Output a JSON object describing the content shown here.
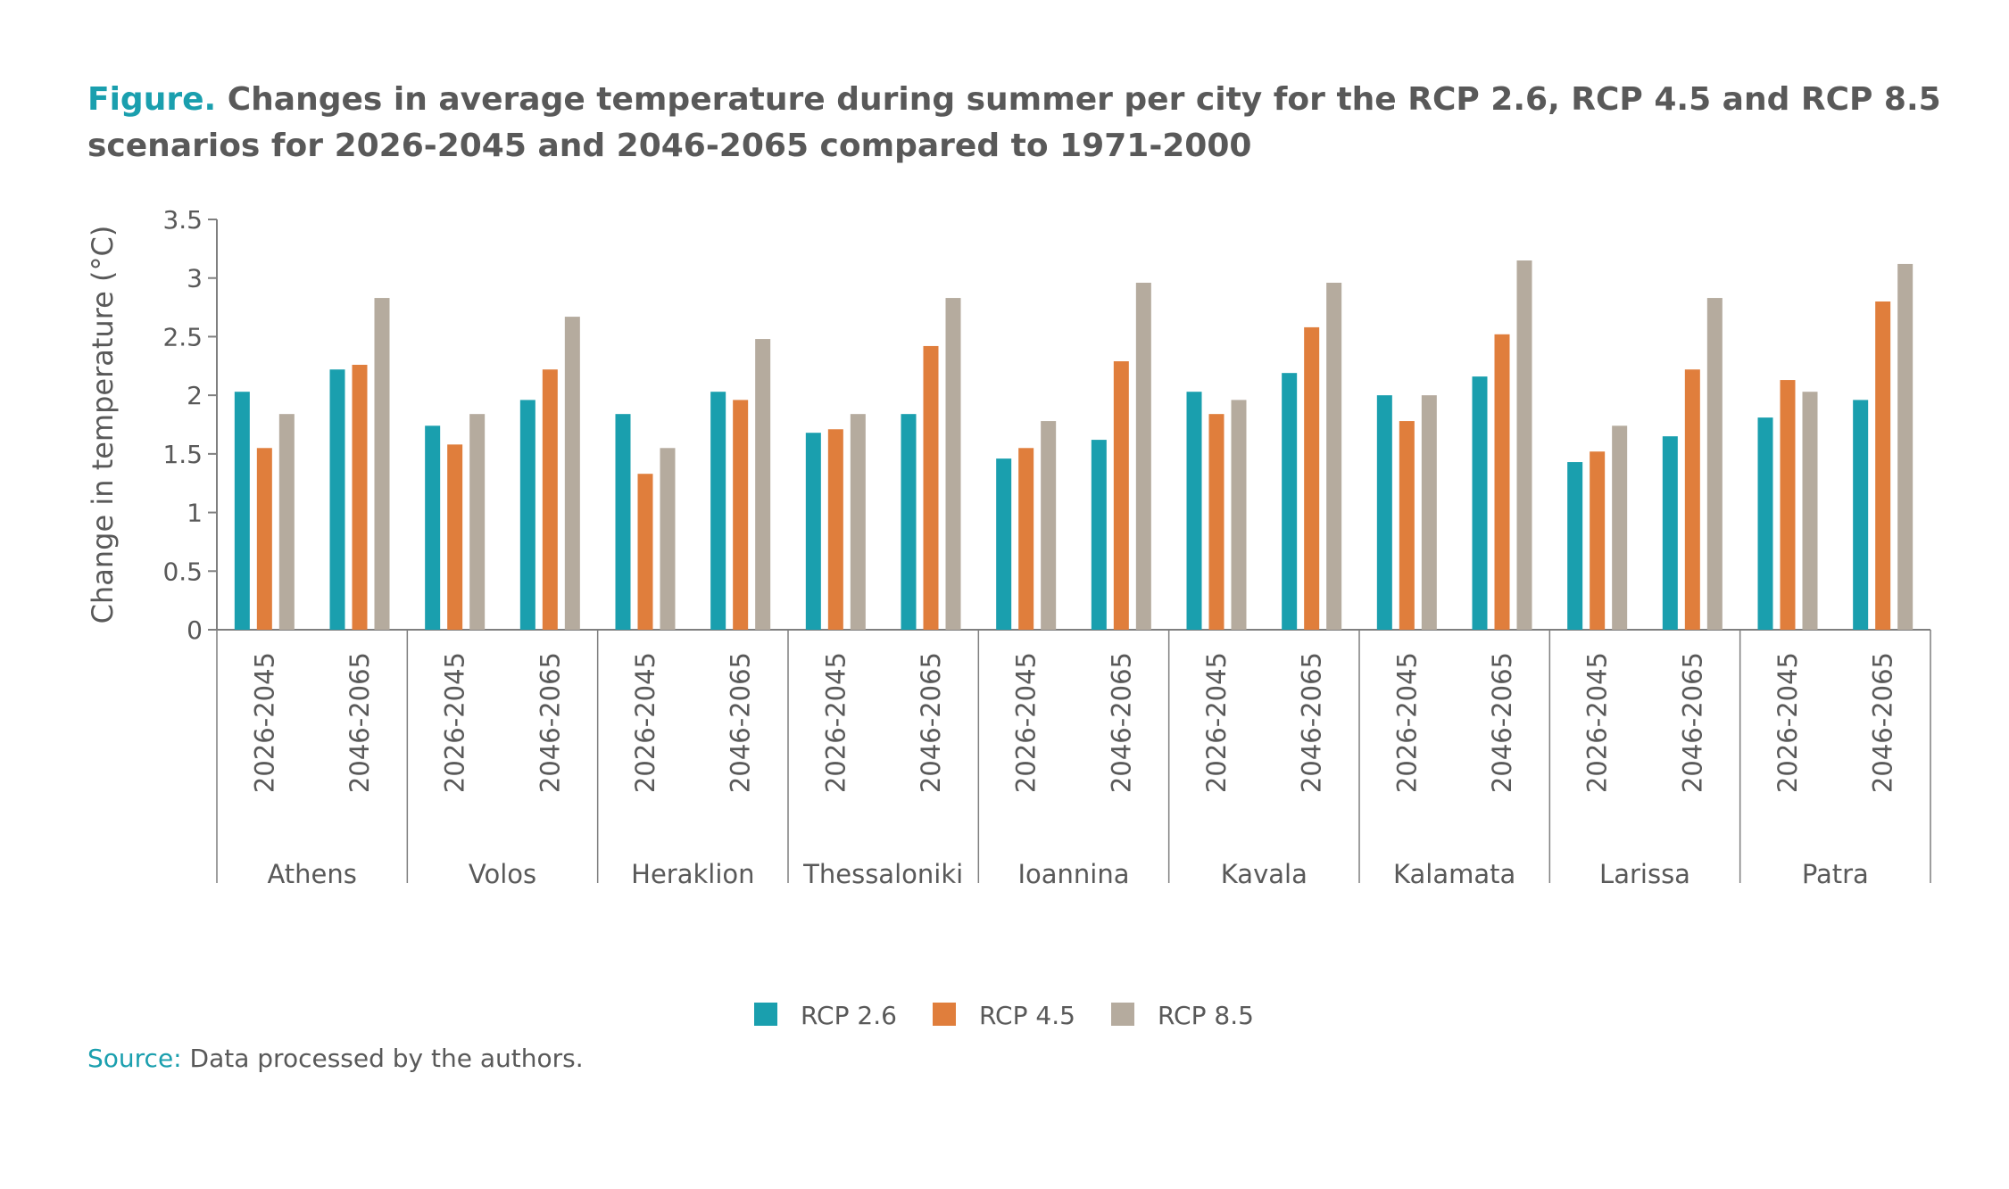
{
  "title_prefix": "Figure.",
  "title_text": "Changes in average temperature during summer per city for the RCP 2.6, RCP 4.5 and RCP 8.5 scenarios for 2026-2045 and 2046-2065 compared to 1971-2000",
  "source_label": "Source:",
  "source_text": "Data processed by the authors.",
  "chart_data": {
    "type": "bar",
    "ylabel": "Change in temperature (°C)",
    "ylim": [
      0,
      3.5
    ],
    "yticks": [
      "0",
      "0.5",
      "1",
      "1.5",
      "2",
      "2.5",
      "3",
      "3.5"
    ],
    "periods": [
      "2026-2045",
      "2046-2065"
    ],
    "cities": [
      "Athens",
      "Volos",
      "Heraklion",
      "Thessaloniki",
      "Ioannina",
      "Kavala",
      "Kalamata",
      "Larissa",
      "Patra"
    ],
    "categories": [
      "Athens 2026-2045",
      "Athens 2046-2065",
      "Volos 2026-2045",
      "Volos 2046-2065",
      "Heraklion 2026-2045",
      "Heraklion 2046-2065",
      "Thessaloniki 2026-2045",
      "Thessaloniki 2046-2065",
      "Ioannina 2026-2045",
      "Ioannina 2046-2065",
      "Kavala 2026-2045",
      "Kavala 2046-2065",
      "Kalamata 2026-2045",
      "Kalamata 2046-2065",
      "Larissa 2026-2045",
      "Larissa 2046-2065",
      "Patra 2026-2045",
      "Patra 2046-2065"
    ],
    "series": [
      {
        "name": "RCP 2.6",
        "color": "#1a9fae",
        "values": [
          2.03,
          2.22,
          1.74,
          1.96,
          1.84,
          2.03,
          1.68,
          1.84,
          1.46,
          1.62,
          2.03,
          2.19,
          2.0,
          2.16,
          1.43,
          1.65,
          1.81,
          1.96
        ]
      },
      {
        "name": "RCP 4.5",
        "color": "#e07e3c",
        "values": [
          1.55,
          2.26,
          1.58,
          2.22,
          1.33,
          1.96,
          1.71,
          2.42,
          1.55,
          2.29,
          1.84,
          2.58,
          1.78,
          2.52,
          1.52,
          2.22,
          2.13,
          2.8
        ]
      },
      {
        "name": "RCP 8.5",
        "color": "#b5ab9e",
        "values": [
          1.84,
          2.83,
          1.84,
          2.67,
          1.55,
          2.48,
          1.84,
          2.83,
          1.78,
          2.96,
          1.96,
          2.96,
          2.0,
          3.15,
          1.74,
          2.83,
          2.03,
          3.12
        ]
      }
    ],
    "grid": false,
    "legend_position": "bottom-center",
    "axis_color": "#7f7f7f"
  }
}
